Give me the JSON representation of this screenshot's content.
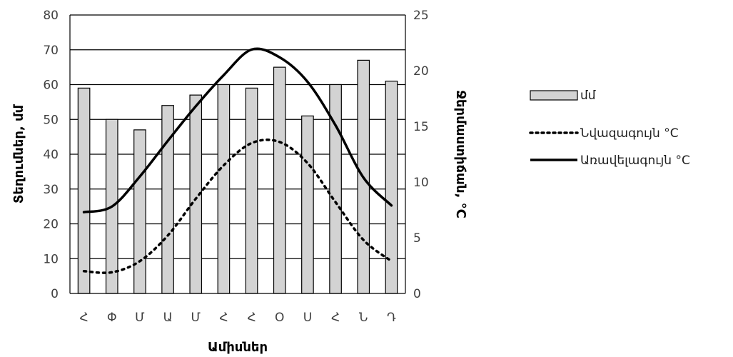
{
  "chart_data": {
    "type": "bar",
    "categories": [
      "Հ",
      "Փ",
      "Մ",
      "Ա",
      "Մ",
      "Հ",
      "Հ",
      "Օ",
      "Ս",
      "Հ",
      "Ն",
      "Դ"
    ],
    "series": [
      {
        "name": "մմ",
        "type": "bar",
        "axis": "left",
        "color": "#d3d3d3",
        "values": [
          59,
          50,
          47,
          54,
          57,
          60,
          59,
          65,
          51,
          60,
          67,
          61
        ]
      },
      {
        "name": "Նվազագույն °C",
        "type": "line",
        "axis": "right",
        "style": "dotted",
        "color": "#000000",
        "values": [
          2.0,
          1.9,
          2.9,
          5.2,
          8.5,
          11.5,
          13.5,
          13.6,
          11.7,
          8.2,
          4.8,
          2.9
        ]
      },
      {
        "name": "Առավելագույն °C",
        "type": "line",
        "axis": "right",
        "style": "solid",
        "color": "#000000",
        "values": [
          7.3,
          7.8,
          10.5,
          13.7,
          16.8,
          19.6,
          21.9,
          21.2,
          19.0,
          15.1,
          10.4,
          7.9
        ]
      }
    ],
    "xlabel": "Ամիսներ",
    "ylabel": "Տեղումներ, մմ",
    "y2label": "Ջերմաստիճան, °C",
    "ylim": [
      0,
      80
    ],
    "y2lim": [
      0,
      25
    ],
    "yticks": [
      0,
      10,
      20,
      30,
      40,
      50,
      60,
      70,
      80
    ],
    "y2ticks": [
      0,
      5,
      10,
      15,
      20,
      25
    ],
    "grid": true,
    "legend": "right"
  }
}
